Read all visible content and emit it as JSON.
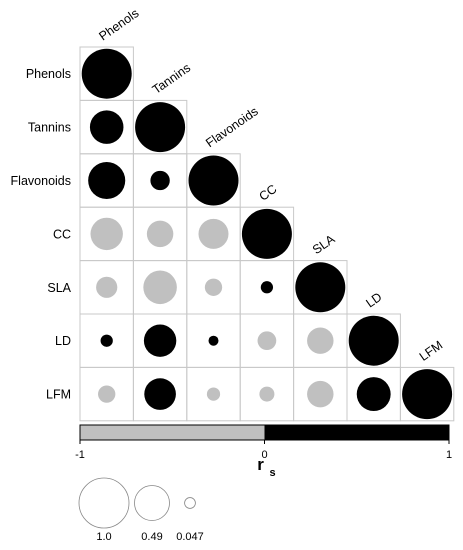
{
  "chart_data": {
    "type": "heatmap",
    "subtype": "correlation-matrix-lower-triangle-circles",
    "variables": [
      "Phenols",
      "Tannins",
      "Flavonoids",
      "CC",
      "SLA",
      "LD",
      "LFM"
    ],
    "matrix": [
      [
        1.0,
        null,
        null,
        null,
        null,
        null,
        null
      ],
      [
        0.45,
        1.0,
        null,
        null,
        null,
        null,
        null
      ],
      [
        0.55,
        0.15,
        1.0,
        null,
        null,
        null,
        null
      ],
      [
        -0.42,
        -0.28,
        -0.36,
        1.0,
        null,
        null,
        null
      ],
      [
        -0.18,
        -0.45,
        -0.12,
        0.06,
        1.0,
        null,
        null
      ],
      [
        0.06,
        0.42,
        0.04,
        -0.14,
        -0.28,
        1.0,
        null
      ],
      [
        -0.12,
        0.4,
        -0.07,
        -0.09,
        -0.28,
        0.46,
        1.0
      ]
    ],
    "colorbar": {
      "min": -1,
      "max": 1,
      "negative_color": "#c0c0c0",
      "positive_color": "#000000",
      "tick_labels": [
        "-1",
        "0",
        "1"
      ]
    },
    "xlabel_main": "r",
    "xlabel_sub": "s",
    "size_legend": {
      "values": [
        1.0,
        0.49,
        0.047
      ],
      "labels": [
        "1.0",
        "0.49",
        "0.047"
      ]
    }
  }
}
